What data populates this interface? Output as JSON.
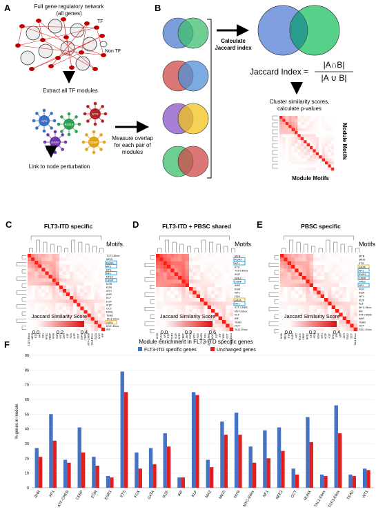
{
  "panel_letters": [
    "A",
    "B",
    "C",
    "D",
    "E",
    "F"
  ],
  "panelA": {
    "network_title_1": "Full gene regulatory network",
    "network_title_2": "(all genes)",
    "tf_label": "TF",
    "non_tf_label": "Non TF",
    "extract_label": "Extract all TF modules",
    "link_label": "Link to node perturbation",
    "modules": [
      {
        "name": "AP1",
        "color": "#3b6fc4"
      },
      {
        "name": "RUNX",
        "color": "#2e9e4f"
      },
      {
        "name": "ETS",
        "color": "#b22424"
      },
      {
        "name": "GATA",
        "color": "#6f3aa8"
      },
      {
        "name": "CEBP",
        "color": "#e0a41c"
      }
    ]
  },
  "panelB": {
    "measure_label": [
      "Measure overlap",
      "for each pair of",
      "modules"
    ],
    "calc_label": [
      "Calculate",
      "Jaccard index"
    ],
    "formula_lhs": "Jaccard Index =",
    "formula_num": "|A∩B|",
    "formula_den": "|A ∪ B|",
    "cluster_label": [
      "Cluster similarity scores,",
      "calculate p-values"
    ],
    "module_motifs_bottom": "Module Motifs",
    "module_motifs_side": "Module Motifs",
    "venn_pairs": [
      [
        "#4f7fd0",
        "#3fbf6f"
      ],
      [
        "#d04a4a",
        "#4f8fd6"
      ],
      [
        "#8a55c8",
        "#f2c21c"
      ],
      [
        "#3fbf6f",
        "#d04a4a"
      ]
    ]
  },
  "heatmaps": [
    {
      "letter": "C",
      "title": "FLT3-ITD specific",
      "motifs_header": "Motifs",
      "row_labels": [
        "TCF3-Ebox",
        "MEIS",
        "RUNX",
        "AP1",
        "ETS",
        "NF1",
        "NFE2",
        "CEBP",
        "MYB",
        "EGR",
        "WT1",
        "AHR",
        "KLF",
        "FOX",
        "IKZF",
        "OCT",
        "ESR1",
        "TEAD",
        "TAL1-Ebox",
        "GATA",
        "MYC-Ebox",
        "IRF"
      ],
      "col_labels": [
        "TCF3-Ebox",
        "MEIS",
        "ETS",
        "AP1",
        "NF1",
        "NFE2",
        "CEBP",
        "MYB",
        "EGR",
        "WT1",
        "AHR",
        "KLF",
        "FOX",
        "IKZF",
        "OCT",
        "ESR1",
        "TEAD",
        "ATF-CREB",
        "TAL1-Ebox",
        "GATA",
        "MYC",
        "IRF"
      ],
      "boxes": [
        {
          "label": "RUNX",
          "color": "#3aa3d6"
        },
        {
          "label": "AP1",
          "color": "#3aa3d6"
        },
        {
          "label": "NF1",
          "color": "#3aa3d6"
        },
        {
          "label": "CEBP",
          "color": "#3aa3d6"
        },
        {
          "label": "GATA",
          "color": "#e0b020"
        }
      ],
      "legend_title": "Jaccard Similarity Score",
      "legend_ticks": [
        "0.0",
        "0.2",
        "0.4"
      ]
    },
    {
      "letter": "D",
      "title": "FLT3-ITD + PBSC shared",
      "motifs_header": "Motifs",
      "row_labels": [
        "MYB",
        "RUNX",
        "AP1",
        "ETS",
        "TCF3-Ebox",
        "IKZF",
        "NFE2",
        "CEBP",
        "AHR",
        "EGR",
        "WT1",
        "FOX",
        "GATA",
        "NF1",
        "ATF-CREB",
        "MYC-Ebox",
        "KLF",
        "IRF",
        "TEAD",
        "OCT",
        "TAL1-Ebox"
      ],
      "col_labels": [
        "MYB",
        "RUNX",
        "AP1",
        "ETS",
        "TCF3",
        "IKZF",
        "NFE2",
        "CEBP",
        "AHR",
        "EGR",
        "WT1",
        "FOX",
        "GATA",
        "NF1",
        "ATF-CREB",
        "MYC",
        "KLF",
        "IRF",
        "TEAD",
        "OCT",
        "TAL1-Ebox"
      ],
      "boxes": [
        {
          "label": "RUNX",
          "color": "#3aa3d6"
        },
        {
          "label": "AP1",
          "color": "#3aa3d6"
        },
        {
          "label": "CEBP",
          "color": "#3aa3d6"
        },
        {
          "label": "GATA",
          "color": "#e0b020"
        },
        {
          "label": "NF1",
          "color": "#3aa3d6"
        }
      ],
      "legend_title": "Jaccard Similarity Score",
      "legend_ticks": [
        "0.0",
        "0.3",
        "0.6"
      ]
    },
    {
      "letter": "E",
      "title": "PBSC specific",
      "motifs_header": "Motifs",
      "row_labels": [
        "MYB",
        "MEIS",
        "ETS",
        "GATA",
        "AP1",
        "RUNX",
        "CEBP",
        "NFE2",
        "NF1",
        "FOX",
        "EGR",
        "WT1",
        "IKZF",
        "KLF",
        "MYC-Ebox",
        "IRF",
        "ATF-CREB",
        "AHR",
        "TEAD",
        "OCT",
        "TAL1-Ebox"
      ],
      "col_labels": [
        "MYB",
        "MEIS",
        "ETS",
        "GATA",
        "AP1",
        "RUNX",
        "CEBP",
        "NFE2",
        "NF1",
        "FOX",
        "EGR",
        "WT1",
        "IKZF",
        "KLF",
        "MYC",
        "IRF",
        "ATF",
        "AHR",
        "TEAD",
        "OCT",
        "TAL1-Ebox"
      ],
      "boxes": [
        {
          "label": "GATA",
          "color": "#e0b020"
        },
        {
          "label": "AP1",
          "color": "#3aa3d6"
        },
        {
          "label": "RUNX",
          "color": "#3aa3d6"
        },
        {
          "label": "CEBP",
          "color": "#3aa3d6"
        },
        {
          "label": "NF1",
          "color": "#3aa3d6"
        }
      ],
      "legend_title": "Jaccard Similarity Score",
      "legend_ticks": [
        "0.0",
        "0.2",
        "0.4"
      ]
    }
  ],
  "panelF": {
    "letter": "F",
    "chart_data": {
      "type": "bar",
      "title": "Module enrichment in FLT3-ITD specific genes",
      "ylabel": "% genes in module",
      "ylim": [
        0,
        90
      ],
      "yticks": [
        "0",
        "10",
        "20",
        "30",
        "40",
        "50",
        "60",
        "70",
        "80",
        "90"
      ],
      "categories": [
        "AHR",
        "AP1",
        "ATF-CREB",
        "CEBP",
        "EGR",
        "ESR1",
        "ETS",
        "FOX",
        "GATA",
        "IKZF",
        "IRF",
        "KLF",
        "MAZ",
        "MEIS",
        "MYB",
        "MYC-Ebox",
        "NF1",
        "NFE2",
        "OCT",
        "RUNX",
        "TAL1-Ebox",
        "TCF3-Ebox",
        "TEAD",
        "WT1"
      ],
      "series": [
        {
          "name": "FLT3-ITD specific genes",
          "color": "#4472c4",
          "values": [
            27,
            50,
            19,
            41,
            21,
            8,
            79,
            24,
            27,
            37,
            7,
            65,
            19,
            45,
            51,
            28,
            39,
            41,
            13,
            48,
            9,
            56,
            9,
            13
          ]
        },
        {
          "name": "Unchanged genes",
          "color": "#e02020",
          "values": [
            21,
            32,
            17,
            24,
            15,
            7,
            65,
            13,
            16,
            28,
            7,
            63,
            14,
            36,
            36,
            17,
            20,
            25,
            9,
            31,
            8,
            37,
            8,
            12
          ]
        }
      ],
      "legend_position": "top-center"
    }
  }
}
